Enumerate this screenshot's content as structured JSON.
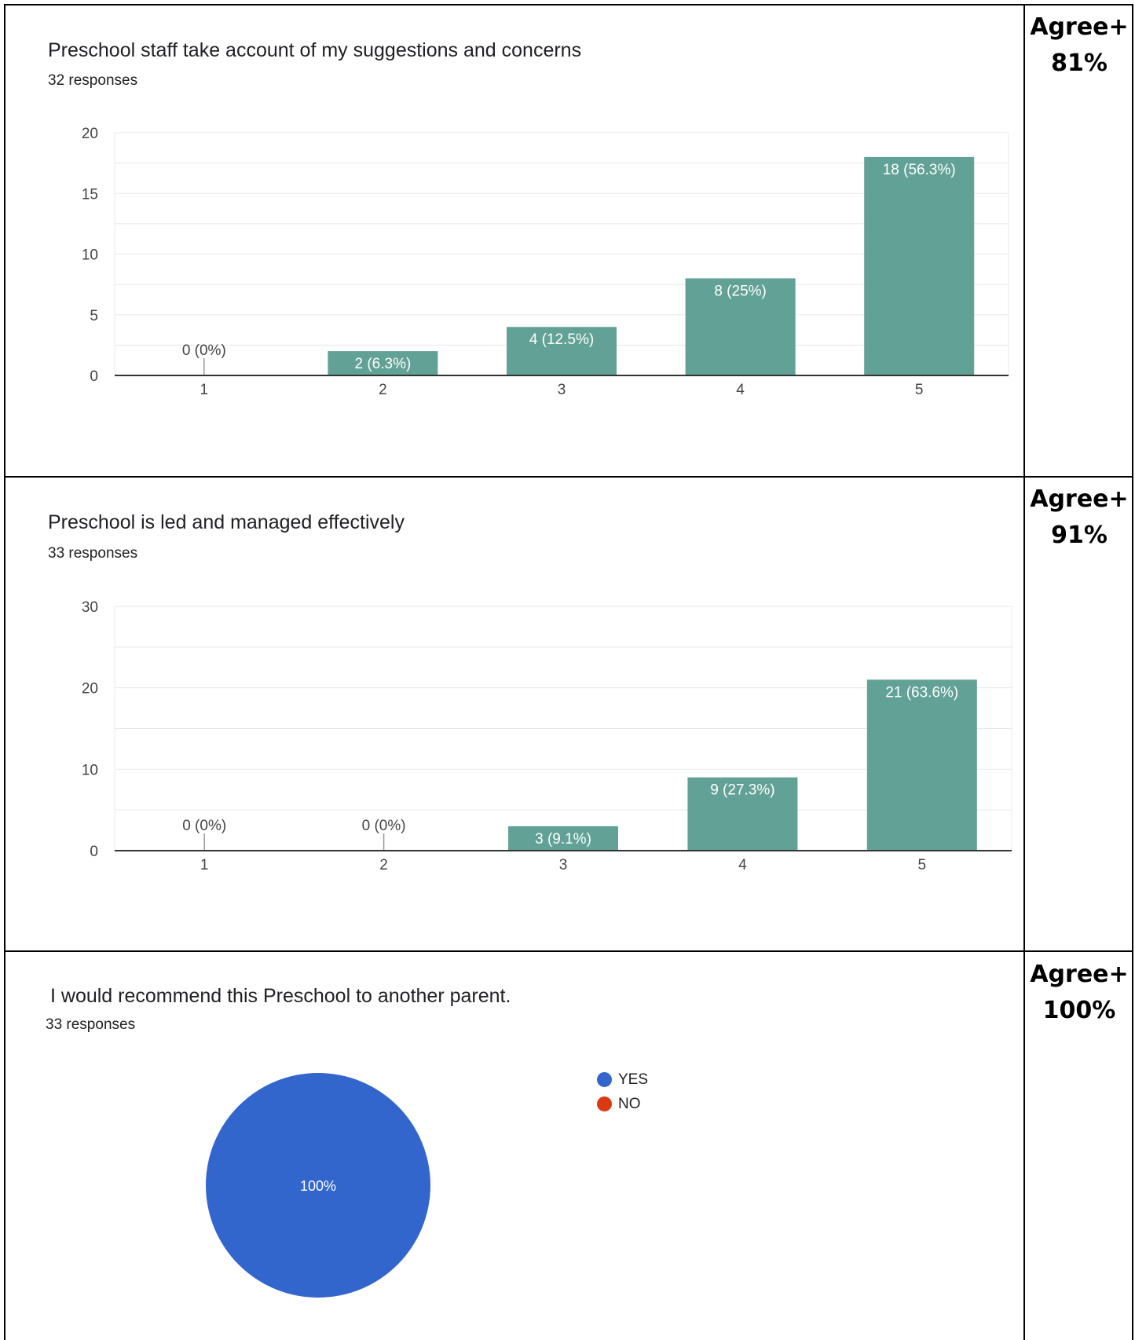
{
  "charts": [
    {
      "title": "Preschool staff take account of my suggestions and concerns",
      "responses": "32 responses",
      "agree_label": "Agree+",
      "agree_value": "81%"
    },
    {
      "title": "Preschool is led and managed effectively",
      "responses": "33 responses",
      "agree_label": "Agree+",
      "agree_value": "91%"
    },
    {
      "title": "I would recommend this Preschool to another parent.",
      "responses": "33 responses",
      "agree_label": "Agree+",
      "agree_value": "100%"
    }
  ],
  "colors": {
    "bar": "#62a296",
    "pie_yes": "#3366cc",
    "pie_no": "#dc3912",
    "grid": "#e8e8e8",
    "axis": "#333333",
    "tick_text": "#444444"
  },
  "chart_data": [
    {
      "type": "bar",
      "title": "Preschool staff take account of my suggestions and concerns",
      "categories": [
        "1",
        "2",
        "3",
        "4",
        "5"
      ],
      "values": [
        0,
        2,
        4,
        8,
        18
      ],
      "labels": [
        "0 (0%)",
        "2 (6.3%)",
        "4 (12.5%)",
        "8 (25%)",
        "18 (56.3%)"
      ],
      "yticks": [
        0,
        5,
        10,
        15,
        20
      ],
      "ylim": [
        0,
        20
      ],
      "grid": true
    },
    {
      "type": "bar",
      "title": "Preschool is led and managed effectively",
      "categories": [
        "1",
        "2",
        "3",
        "4",
        "5"
      ],
      "values": [
        0,
        0,
        3,
        9,
        21
      ],
      "labels": [
        "0 (0%)",
        "0 (0%)",
        "3 (9.1%)",
        "9 (27.3%)",
        "21 (63.6%)"
      ],
      "yticks": [
        0,
        10,
        20,
        30
      ],
      "ylim": [
        0,
        30
      ],
      "grid": true
    },
    {
      "type": "pie",
      "title": "I would recommend this Preschool to another parent.",
      "categories": [
        "YES",
        "NO"
      ],
      "values": [
        100,
        0
      ],
      "slice_labels": [
        "100%",
        ""
      ],
      "legend_position": "right"
    }
  ]
}
